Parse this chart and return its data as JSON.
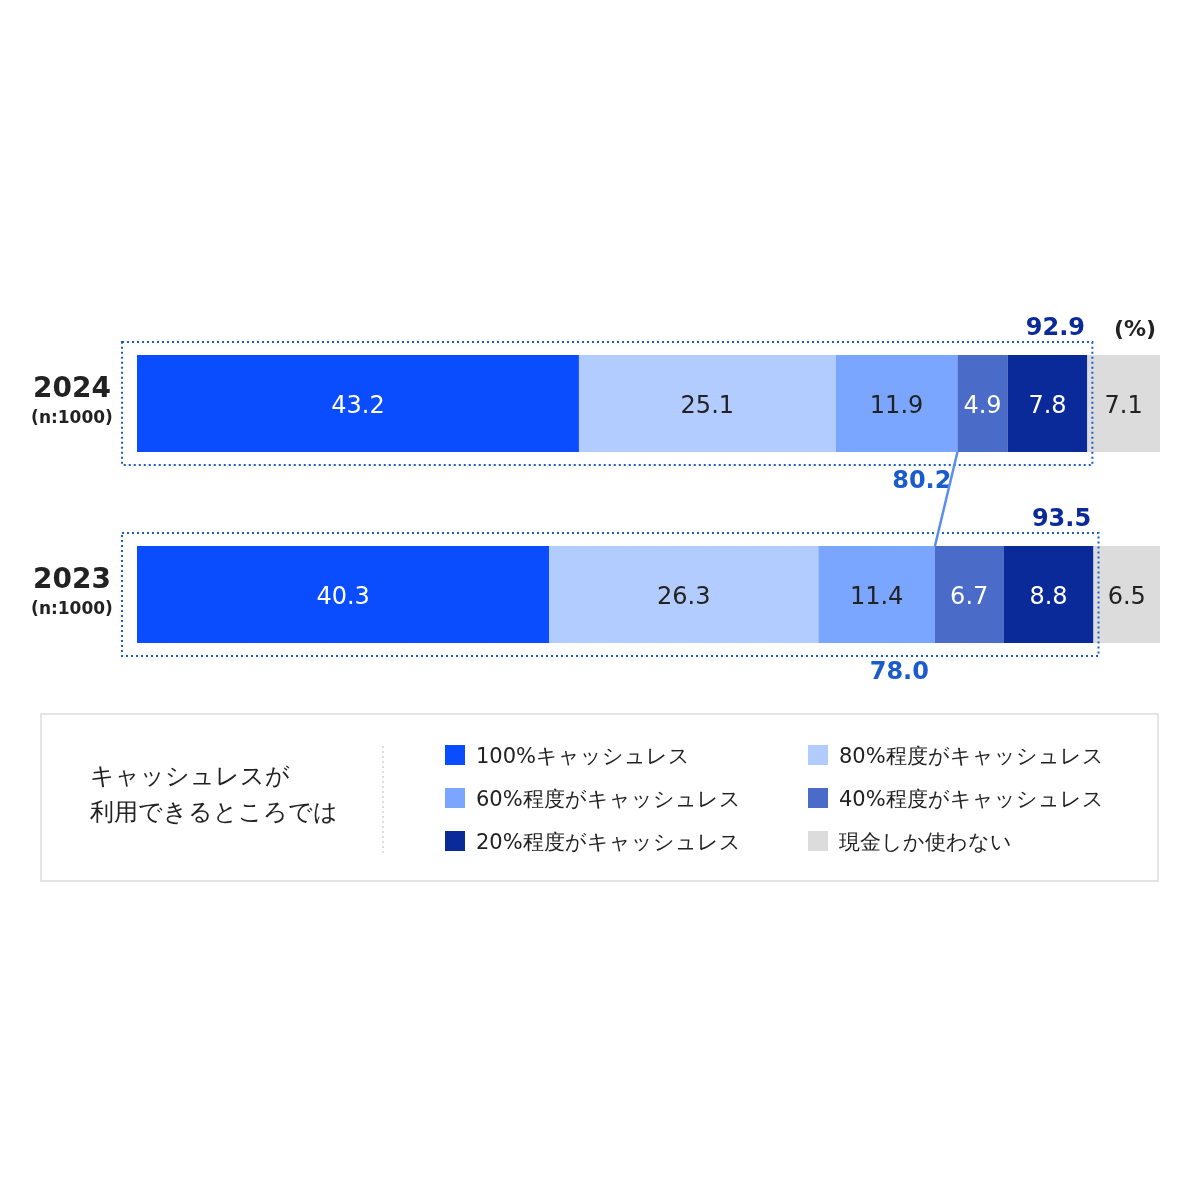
{
  "chart_data": {
    "type": "bar",
    "orientation": "horizontal",
    "stacked": true,
    "data_labels": true,
    "legend": "bottom",
    "legend_title": "キャッシュレスが利用できるところでは",
    "categories": [
      "2024\n(n:1000)",
      "2023\n(n:1000)"
    ],
    "series": [
      {
        "name": "100%キャッシュレス",
        "color": "#0a4cff",
        "values": [
          43.2,
          40.3
        ]
      },
      {
        "name": "80%程度がキャッシュレス",
        "color": "#b3ccff",
        "values": [
          25.1,
          26.3
        ]
      },
      {
        "name": "60%程度がキャッシュレス",
        "color": "#7aa6ff",
        "values": [
          11.9,
          11.4
        ]
      },
      {
        "name": "40%程度がキャッシュレス",
        "color": "#4a6cc8",
        "values": [
          4.9,
          6.7
        ]
      },
      {
        "name": "20%程度がキャッシュレス",
        "color": "#0a2a9a",
        "values": [
          7.8,
          8.8
        ]
      },
      {
        "name": "現金しか使わない",
        "color": "#dcdcdc",
        "values": [
          7.1,
          6.5
        ]
      }
    ],
    "annotations": [
      {
        "text": "92.9",
        "x": 92.9,
        "y": "2024\n(n:1000)"
      },
      {
        "text": "80.2",
        "x": 80.2,
        "y": "2024\n(n:1000)"
      },
      {
        "text": "93.5",
        "x": 93.5,
        "y": "2023\n(n:1000)"
      },
      {
        "text": "78.0",
        "x": 78.0,
        "y": "2023\n(n:1000)"
      },
      "(%)"
    ]
  }
}
